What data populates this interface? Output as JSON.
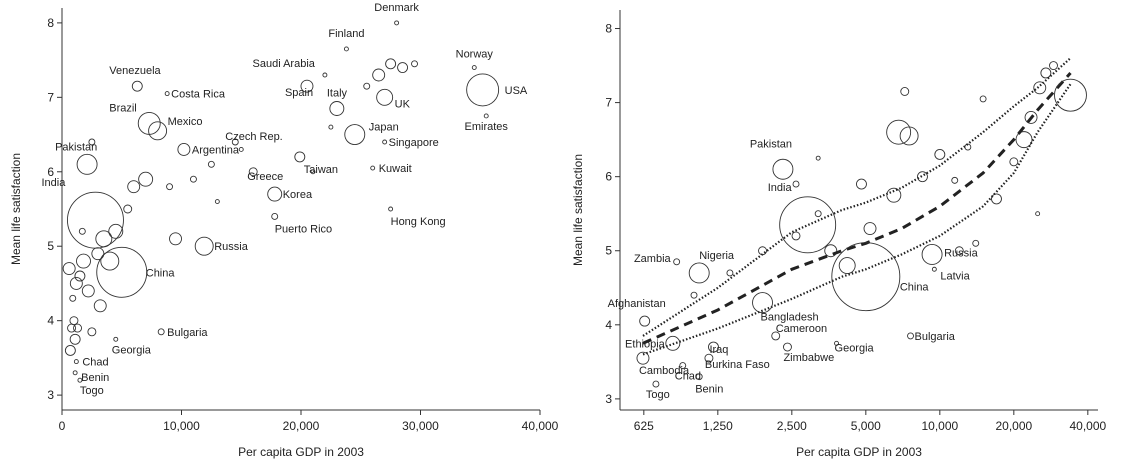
{
  "chart_data": [
    {
      "type": "scatter",
      "title": "",
      "xlabel": "Per capita GDP in 2003",
      "ylabel": "Mean life satisfaction",
      "xlim": [
        0,
        40000
      ],
      "ylim": [
        2.8,
        8.2
      ],
      "x_scale": "linear",
      "x_ticks": [
        0,
        10000,
        20000,
        30000,
        40000
      ],
      "x_tick_labels": [
        "0",
        "10,000",
        "20,000",
        "30,000",
        "40,000"
      ],
      "y_ticks": [
        3,
        4,
        5,
        6,
        7,
        8
      ],
      "y_tick_labels": [
        "3",
        "4",
        "5",
        "6",
        "7",
        "8"
      ],
      "marker": "open circle, size proportional to population",
      "points": [
        {
          "label": "Denmark",
          "x": 28000,
          "y": 8.0,
          "r": 2
        },
        {
          "label": "Finland",
          "x": 23800,
          "y": 7.65,
          "r": 2
        },
        {
          "label": "Norway",
          "x": 34500,
          "y": 7.4,
          "r": 2
        },
        {
          "label": "USA",
          "x": 35200,
          "y": 7.1,
          "r": 16
        },
        {
          "label": "Emirates",
          "x": 35500,
          "y": 6.75,
          "r": 2
        },
        {
          "label": "Venezuela",
          "x": 6300,
          "y": 7.15,
          "r": 5
        },
        {
          "label": "Costa Rica",
          "x": 8800,
          "y": 7.05,
          "r": 2
        },
        {
          "label": "Saudi Arabia",
          "x": 22000,
          "y": 7.3,
          "r": 2
        },
        {
          "label": "Spain",
          "x": 20500,
          "y": 7.15,
          "r": 6
        },
        {
          "label": "Italy",
          "x": 23000,
          "y": 6.85,
          "r": 7
        },
        {
          "label": "UK",
          "x": 27000,
          "y": 7.0,
          "r": 8
        },
        {
          "label": "Japan",
          "x": 24500,
          "y": 6.5,
          "r": 10
        },
        {
          "label": "Singapore",
          "x": 27000,
          "y": 6.4,
          "r": 2
        },
        {
          "label": "Kuwait",
          "x": 26000,
          "y": 6.05,
          "r": 2
        },
        {
          "label": "Hong Kong",
          "x": 27500,
          "y": 5.5,
          "r": 2
        },
        {
          "label": "Brazil",
          "x": 7300,
          "y": 6.65,
          "r": 11
        },
        {
          "label": "Mexico",
          "x": 8000,
          "y": 6.55,
          "r": 9
        },
        {
          "label": "Czech Rep.",
          "x": 14500,
          "y": 6.4,
          "r": 3
        },
        {
          "label": "Argentina",
          "x": 10200,
          "y": 6.3,
          "r": 6
        },
        {
          "label": "Greece",
          "x": 16000,
          "y": 6.0,
          "r": 4
        },
        {
          "label": "Taiwan",
          "x": 19900,
          "y": 6.2,
          "r": 5
        },
        {
          "label": "Korea",
          "x": 17800,
          "y": 5.7,
          "r": 7
        },
        {
          "label": "Puerto Rico",
          "x": 17800,
          "y": 5.4,
          "r": 3
        },
        {
          "label": "Pakistan",
          "x": 2100,
          "y": 6.1,
          "r": 10
        },
        {
          "label": "India",
          "x": 2800,
          "y": 5.35,
          "r": 28
        },
        {
          "label": "Russia",
          "x": 11900,
          "y": 5.0,
          "r": 9
        },
        {
          "label": "China",
          "x": 5000,
          "y": 4.65,
          "r": 25
        },
        {
          "label": "Bulgaria",
          "x": 8300,
          "y": 3.85,
          "r": 3
        },
        {
          "label": "Georgia",
          "x": 4500,
          "y": 3.75,
          "r": 2
        },
        {
          "label": "Chad",
          "x": 1200,
          "y": 3.45,
          "r": 2
        },
        {
          "label": "Benin",
          "x": 1100,
          "y": 3.3,
          "r": 2
        },
        {
          "label": "Togo",
          "x": 1500,
          "y": 3.2,
          "r": 2
        }
      ]
    },
    {
      "type": "scatter",
      "title": "",
      "xlabel": "Per capita GDP in 2003",
      "ylabel": "Mean life satisfaction",
      "xlim": [
        500,
        44000
      ],
      "ylim": [
        2.85,
        8.25
      ],
      "x_scale": "log",
      "x_ticks": [
        625,
        1250,
        2500,
        5000,
        10000,
        20000,
        40000
      ],
      "x_tick_labels": [
        "625",
        "1,250",
        "2,500",
        "5,000",
        "10,000",
        "20,000",
        "40,000"
      ],
      "y_ticks": [
        3,
        4,
        5,
        6,
        7,
        8
      ],
      "y_tick_labels": [
        "3",
        "4",
        "5",
        "6",
        "7",
        "8"
      ],
      "marker": "open circle, size proportional to population",
      "points": [
        {
          "label": "Pakistan",
          "x": 2300,
          "y": 6.1,
          "r": 10
        },
        {
          "label": "India",
          "x": 2900,
          "y": 5.35,
          "r": 28
        },
        {
          "label": "Zambia",
          "x": 850,
          "y": 4.85,
          "r": 3
        },
        {
          "label": "Nigeria",
          "x": 1050,
          "y": 4.7,
          "r": 10
        },
        {
          "label": "Russia",
          "x": 9300,
          "y": 4.95,
          "r": 10
        },
        {
          "label": "Latvia",
          "x": 9500,
          "y": 4.75,
          "r": 2
        },
        {
          "label": "Afghanistan",
          "x": 630,
          "y": 4.05,
          "r": 5
        },
        {
          "label": "Bangladesh",
          "x": 1900,
          "y": 4.3,
          "r": 10
        },
        {
          "label": "Cameroon",
          "x": 2150,
          "y": 3.85,
          "r": 4
        },
        {
          "label": "China",
          "x": 5000,
          "y": 4.65,
          "r": 34
        },
        {
          "label": "Ethiopia",
          "x": 820,
          "y": 3.75,
          "r": 7
        },
        {
          "label": "Iraq",
          "x": 1200,
          "y": 3.7,
          "r": 5
        },
        {
          "label": "Burkina Faso",
          "x": 1150,
          "y": 3.55,
          "r": 4
        },
        {
          "label": "Zimbabwe",
          "x": 2400,
          "y": 3.7,
          "r": 4
        },
        {
          "label": "Georgia",
          "x": 3800,
          "y": 3.75,
          "r": 2
        },
        {
          "label": "Bulgaria",
          "x": 7600,
          "y": 3.85,
          "r": 3
        },
        {
          "label": "Cambodia",
          "x": 620,
          "y": 3.55,
          "r": 6
        },
        {
          "label": "Chad",
          "x": 900,
          "y": 3.45,
          "r": 3
        },
        {
          "label": "Togo",
          "x": 700,
          "y": 3.2,
          "r": 3
        },
        {
          "label": "Benin",
          "x": 1050,
          "y": 3.3,
          "r": 3
        },
        {
          "label": "",
          "x": 34000,
          "y": 7.1,
          "r": 16
        }
      ],
      "lines": [
        {
          "style": "dashed",
          "x": [
            620,
            1250,
            2500,
            4000,
            5000,
            7000,
            10000,
            15000,
            20000,
            25000,
            34000
          ],
          "y": [
            3.75,
            4.2,
            4.75,
            5.0,
            5.1,
            5.3,
            5.6,
            6.05,
            6.5,
            6.9,
            7.4
          ]
        },
        {
          "style": "dotted",
          "x": [
            620,
            1250,
            2500,
            4000,
            5000,
            7000,
            10000,
            15000,
            20000,
            25000,
            34000
          ],
          "y": [
            3.85,
            4.5,
            5.25,
            5.55,
            5.65,
            5.85,
            6.15,
            6.6,
            6.95,
            7.2,
            7.6
          ]
        },
        {
          "style": "dotted",
          "x": [
            620,
            1250,
            2500,
            4000,
            5000,
            7000,
            10000,
            15000,
            20000,
            25000,
            34000
          ],
          "y": [
            3.6,
            3.95,
            4.35,
            4.65,
            4.75,
            4.95,
            5.2,
            5.6,
            6.05,
            6.6,
            7.25
          ]
        }
      ]
    }
  ]
}
